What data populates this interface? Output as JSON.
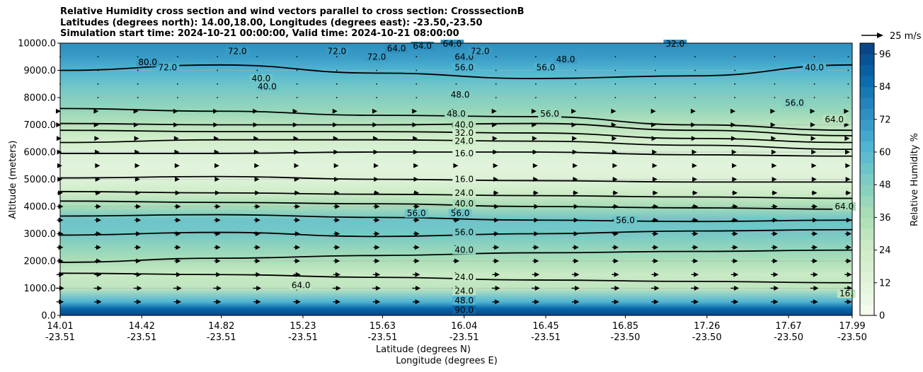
{
  "chart_data": {
    "type": "contour",
    "title_lines": [
      "Relative Humidity cross section and wind vectors parallel to cross section: CrosssectionB",
      "Latitudes (degrees north): 14.00,18.00, Longitudes (degrees east): -23.50,-23.50",
      "Simulation start time: 2024-10-21 00:00:00, Valid time: 2024-10-21 08:00:00"
    ],
    "ylabel": "Altitude (meters)",
    "xlabel_line1": "Latitude (degrees N)",
    "xlabel_line2": "Longitude (degrees E)",
    "ylim": [
      0,
      10000
    ],
    "y_ticks": [
      "0.0",
      "1000.0",
      "2000.0",
      "3000.0",
      "4000.0",
      "5000.0",
      "6000.0",
      "7000.0",
      "8000.0",
      "9000.0",
      "10000.0"
    ],
    "x_ticks": [
      {
        "lat": "14.01",
        "lon": "-23.51",
        "pos": 14.01
      },
      {
        "lat": "14.42",
        "lon": "-23.51",
        "pos": 14.42
      },
      {
        "lat": "14.82",
        "lon": "-23.51",
        "pos": 14.82
      },
      {
        "lat": "15.23",
        "lon": "-23.51",
        "pos": 15.23
      },
      {
        "lat": "15.63",
        "lon": "-23.51",
        "pos": 15.63
      },
      {
        "lat": "16.04",
        "lon": "-23.51",
        "pos": 16.04
      },
      {
        "lat": "16.45",
        "lon": "-23.51",
        "pos": 16.45
      },
      {
        "lat": "16.85",
        "lon": "-23.50",
        "pos": 16.85
      },
      {
        "lat": "17.26",
        "lon": "-23.50",
        "pos": 17.26
      },
      {
        "lat": "17.67",
        "lon": "-23.50",
        "pos": 17.67
      },
      {
        "lat": "17.99",
        "lon": "-23.50",
        "pos": 17.99
      }
    ],
    "xlim": [
      14.01,
      17.99
    ],
    "grid": true,
    "colorbar": {
      "label": "Relative Humidity %",
      "range": [
        0,
        100
      ],
      "ticks": [
        "0",
        "12",
        "24",
        "36",
        "48",
        "60",
        "72",
        "84",
        "96"
      ],
      "tick_values": [
        0,
        12,
        24,
        36,
        48,
        60,
        72,
        84,
        96
      ],
      "colormap": [
        "#f7fcf0",
        "#e0f3db",
        "#ccebc5",
        "#a8ddb5",
        "#7bccc4",
        "#4eb3d3",
        "#2b8cbe",
        "#0868ac",
        "#084081"
      ]
    },
    "wind_key": {
      "label": "25 m/s",
      "speed": 25
    },
    "rh_profile": [
      {
        "alt": 0,
        "rh": 98
      },
      {
        "alt": 250,
        "rh": 88
      },
      {
        "alt": 500,
        "rh": 62
      },
      {
        "alt": 1000,
        "rh": 30
      },
      {
        "alt": 1500,
        "rh": 26
      },
      {
        "alt": 2000,
        "rh": 36
      },
      {
        "alt": 2500,
        "rh": 44
      },
      {
        "alt": 3000,
        "rh": 52
      },
      {
        "alt": 3500,
        "rh": 54
      },
      {
        "alt": 4000,
        "rh": 38
      },
      {
        "alt": 4500,
        "rh": 24
      },
      {
        "alt": 5000,
        "rh": 14
      },
      {
        "alt": 5500,
        "rh": 12
      },
      {
        "alt": 6000,
        "rh": 16
      },
      {
        "alt": 6500,
        "rh": 22
      },
      {
        "alt": 7000,
        "rh": 32
      },
      {
        "alt": 7500,
        "rh": 42
      },
      {
        "alt": 8000,
        "rh": 48
      },
      {
        "alt": 8500,
        "rh": 54
      },
      {
        "alt": 9000,
        "rh": 62
      },
      {
        "alt": 9500,
        "rh": 70
      },
      {
        "alt": 10000,
        "rh": 74
      }
    ],
    "contour_lines": [
      {
        "level": 24,
        "alts": [
          1550,
          1500,
          1400,
          1300,
          1250,
          1200
        ]
      },
      {
        "level": 40,
        "alts": [
          1950,
          2100,
          2200,
          2300,
          2350,
          2400
        ]
      },
      {
        "level": 56,
        "alts": [
          2950,
          3050,
          2900,
          3000,
          3100,
          3150
        ]
      },
      {
        "level": 56,
        "alts": [
          3650,
          3700,
          3600,
          3500,
          3450,
          3500
        ]
      },
      {
        "level": 40,
        "alts": [
          4200,
          4150,
          4100,
          4000,
          3950,
          3900
        ]
      },
      {
        "level": 24,
        "alts": [
          4550,
          4500,
          4450,
          4400,
          4350,
          4300
        ]
      },
      {
        "level": 16,
        "alts": [
          5050,
          5100,
          5000,
          4950,
          4900,
          4900
        ]
      },
      {
        "level": 16,
        "alts": [
          5950,
          5950,
          6000,
          6000,
          5900,
          5850
        ]
      },
      {
        "level": 24,
        "alts": [
          6350,
          6450,
          6450,
          6400,
          6250,
          6100
        ]
      },
      {
        "level": 32,
        "alts": [
          6800,
          6750,
          6750,
          6700,
          6500,
          6350
        ]
      },
      {
        "level": 40,
        "alts": [
          7050,
          7000,
          7000,
          7050,
          6800,
          6600
        ]
      },
      {
        "level": 48,
        "alts": [
          7600,
          7500,
          7350,
          7300,
          7000,
          6800
        ]
      },
      {
        "level": 64,
        "alts": [
          9000,
          9200,
          8900,
          8700,
          8800,
          9200
        ]
      }
    ],
    "contour_labels": [
      {
        "text": "24.0",
        "lat": 16.04,
        "alt": 1400
      },
      {
        "text": "24.0",
        "lat": 16.04,
        "alt": 900
      },
      {
        "text": "40.0",
        "lat": 16.04,
        "alt": 2400
      },
      {
        "text": "56.0",
        "lat": 16.04,
        "alt": 3050
      },
      {
        "text": "56.0",
        "lat": 15.8,
        "alt": 3750
      },
      {
        "text": "56.0",
        "lat": 16.02,
        "alt": 3750
      },
      {
        "text": "40.0",
        "lat": 16.04,
        "alt": 4100
      },
      {
        "text": "24.0",
        "lat": 16.04,
        "alt": 4500
      },
      {
        "text": "16.0",
        "lat": 16.04,
        "alt": 5000
      },
      {
        "text": "16.0",
        "lat": 16.04,
        "alt": 5950
      },
      {
        "text": "24.0",
        "lat": 16.04,
        "alt": 6400
      },
      {
        "text": "32.0",
        "lat": 16.04,
        "alt": 6700
      },
      {
        "text": "40.0",
        "lat": 16.04,
        "alt": 7000
      },
      {
        "text": "48.0",
        "lat": 16.0,
        "alt": 7400
      },
      {
        "text": "48.0",
        "lat": 16.02,
        "alt": 8100
      },
      {
        "text": "56.0",
        "lat": 16.04,
        "alt": 9100
      },
      {
        "text": "64.0",
        "lat": 16.04,
        "alt": 9500
      },
      {
        "text": "56.0",
        "lat": 16.45,
        "alt": 9100
      },
      {
        "text": "48.0",
        "lat": 16.55,
        "alt": 9400
      },
      {
        "text": "56.0",
        "lat": 16.47,
        "alt": 7400
      },
      {
        "text": "56.0",
        "lat": 16.85,
        "alt": 3500
      },
      {
        "text": "56.0",
        "lat": 17.7,
        "alt": 7800
      },
      {
        "text": "64.0",
        "lat": 17.9,
        "alt": 7200
      },
      {
        "text": "40.0",
        "lat": 17.8,
        "alt": 9100
      },
      {
        "text": "64.0",
        "lat": 17.95,
        "alt": 4000
      },
      {
        "text": "16.",
        "lat": 17.96,
        "alt": 800
      },
      {
        "text": "40.0",
        "lat": 15.02,
        "alt": 8700
      },
      {
        "text": "40.0",
        "lat": 15.05,
        "alt": 8400
      },
      {
        "text": "72.0",
        "lat": 14.55,
        "alt": 9100
      },
      {
        "text": "80.0",
        "lat": 14.45,
        "alt": 9300
      },
      {
        "text": "72.0",
        "lat": 14.9,
        "alt": 9700
      },
      {
        "text": "72.0",
        "lat": 15.4,
        "alt": 9700
      },
      {
        "text": "72.0",
        "lat": 15.6,
        "alt": 9500
      },
      {
        "text": "64.0",
        "lat": 15.7,
        "alt": 9800
      },
      {
        "text": "64.0",
        "lat": 15.83,
        "alt": 9900
      },
      {
        "text": "64.0",
        "lat": 15.98,
        "alt": 9970
      },
      {
        "text": "72.0",
        "lat": 16.12,
        "alt": 9700
      },
      {
        "text": "32.0",
        "lat": 17.1,
        "alt": 9970
      },
      {
        "text": "64.0",
        "lat": 15.22,
        "alt": 1100
      },
      {
        "text": "48.0",
        "lat": 16.04,
        "alt": 550
      },
      {
        "text": "90.0",
        "lat": 16.04,
        "alt": 200
      }
    ],
    "wind_columns_lat": [
      14.01,
      14.2,
      14.4,
      14.6,
      14.8,
      15.0,
      15.2,
      15.4,
      15.6,
      15.8,
      16.0,
      16.2,
      16.4,
      16.6,
      16.8,
      17.0,
      17.2,
      17.4,
      17.6,
      17.8,
      17.97
    ],
    "wind_rows": [
      {
        "alt": 9500,
        "u": 1
      },
      {
        "alt": 9000,
        "u": 1
      },
      {
        "alt": 8500,
        "u": 0.5
      },
      {
        "alt": 8000,
        "u": 0.5
      },
      {
        "alt": 7500,
        "u": 1.5
      },
      {
        "alt": 7000,
        "u": 2
      },
      {
        "alt": 6500,
        "u": 3
      },
      {
        "alt": 6000,
        "u": 4
      },
      {
        "alt": 5500,
        "u": 4.5
      },
      {
        "alt": 5000,
        "u": 5
      },
      {
        "alt": 4500,
        "u": 6
      },
      {
        "alt": 4000,
        "u": 7
      },
      {
        "alt": 3500,
        "u": 7
      },
      {
        "alt": 3000,
        "u": 7
      },
      {
        "alt": 2500,
        "u": 7
      },
      {
        "alt": 2000,
        "u": 7
      },
      {
        "alt": 1500,
        "u": 8
      },
      {
        "alt": 1000,
        "u": 9
      },
      {
        "alt": 500,
        "u": 8
      }
    ]
  }
}
